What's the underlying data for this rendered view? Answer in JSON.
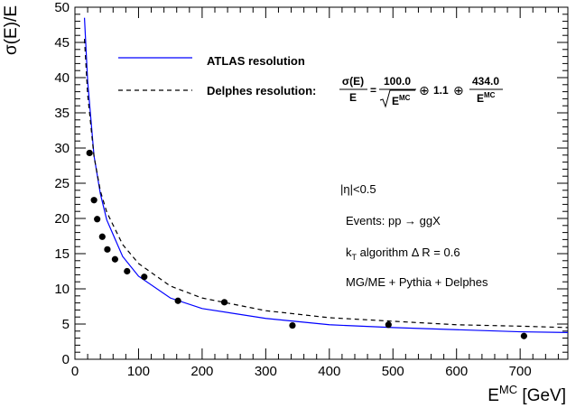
{
  "chart_data": {
    "type": "scatter",
    "title": "",
    "xlabel": {
      "base": "E",
      "sup": "MC",
      "rest": " [GeV]"
    },
    "ylabel": "σ(E)/E",
    "xlim": [
      0,
      775
    ],
    "ylim": [
      0,
      50
    ],
    "x_ticks": [
      0,
      100,
      200,
      300,
      400,
      500,
      600,
      700
    ],
    "y_ticks": [
      0,
      5,
      10,
      15,
      20,
      25,
      30,
      35,
      40,
      45,
      50
    ],
    "grid": false,
    "legend_position": "top-left",
    "series": [
      {
        "name": "ATLAS resolution",
        "kind": "curve",
        "color": "#0000ff",
        "style": "solid",
        "x_start": 13,
        "x_end": 775,
        "x": [
          15,
          20,
          30,
          40,
          50,
          75,
          100,
          150,
          200,
          300,
          400,
          500,
          600,
          700,
          775
        ],
        "y": [
          48.5,
          39.5,
          28.9,
          23.5,
          19.8,
          14.6,
          11.8,
          8.7,
          7.2,
          5.8,
          4.9,
          4.5,
          4.2,
          3.9,
          3.8
        ]
      },
      {
        "name": "Delphes resolution",
        "kind": "curve",
        "color": "#000000",
        "style": "dashed",
        "x_start": 15,
        "x_end": 775,
        "x": [
          15,
          20,
          30,
          40,
          50,
          75,
          100,
          150,
          200,
          300,
          400,
          500,
          600,
          700,
          775
        ],
        "y": [
          45.5,
          37.6,
          28.8,
          23.9,
          20.9,
          16.3,
          13.6,
          10.4,
          8.7,
          6.9,
          5.9,
          5.4,
          4.9,
          4.7,
          4.5
        ]
      },
      {
        "name": "",
        "kind": "points",
        "color": "#000000",
        "x": [
          23,
          30,
          35,
          43,
          51,
          63,
          82,
          109,
          162,
          235,
          342,
          493,
          706
        ],
        "y": [
          29.3,
          22.6,
          19.9,
          17.4,
          15.6,
          14.2,
          12.5,
          11.7,
          8.3,
          8.1,
          4.8,
          4.9,
          3.3
        ]
      }
    ],
    "legend": {
      "entries": [
        {
          "label": "ATLAS resolution",
          "color": "#0000ff",
          "style": "solid"
        },
        {
          "label": "Delphes resolution:",
          "color": "#000000",
          "style": "dashed"
        }
      ],
      "formula": {
        "num": "σ(E)",
        "den": "E",
        "eq": "=",
        "a_num": "100.0",
        "a_den": "E",
        "a_den_sup": "MC",
        "oplus": "⊕",
        "b": "1.1",
        "c_num": "434.0",
        "c_den": "E",
        "c_den_sup": "MC"
      }
    },
    "annotations": {
      "eta": "|η|<0.5",
      "events": "Events: pp → ggX",
      "algo_k": "k",
      "algo_sub": "T",
      "algo_rest": " algorithm Δ R = 0.6",
      "generator": "MG/ME + Pythia + Delphes"
    }
  }
}
